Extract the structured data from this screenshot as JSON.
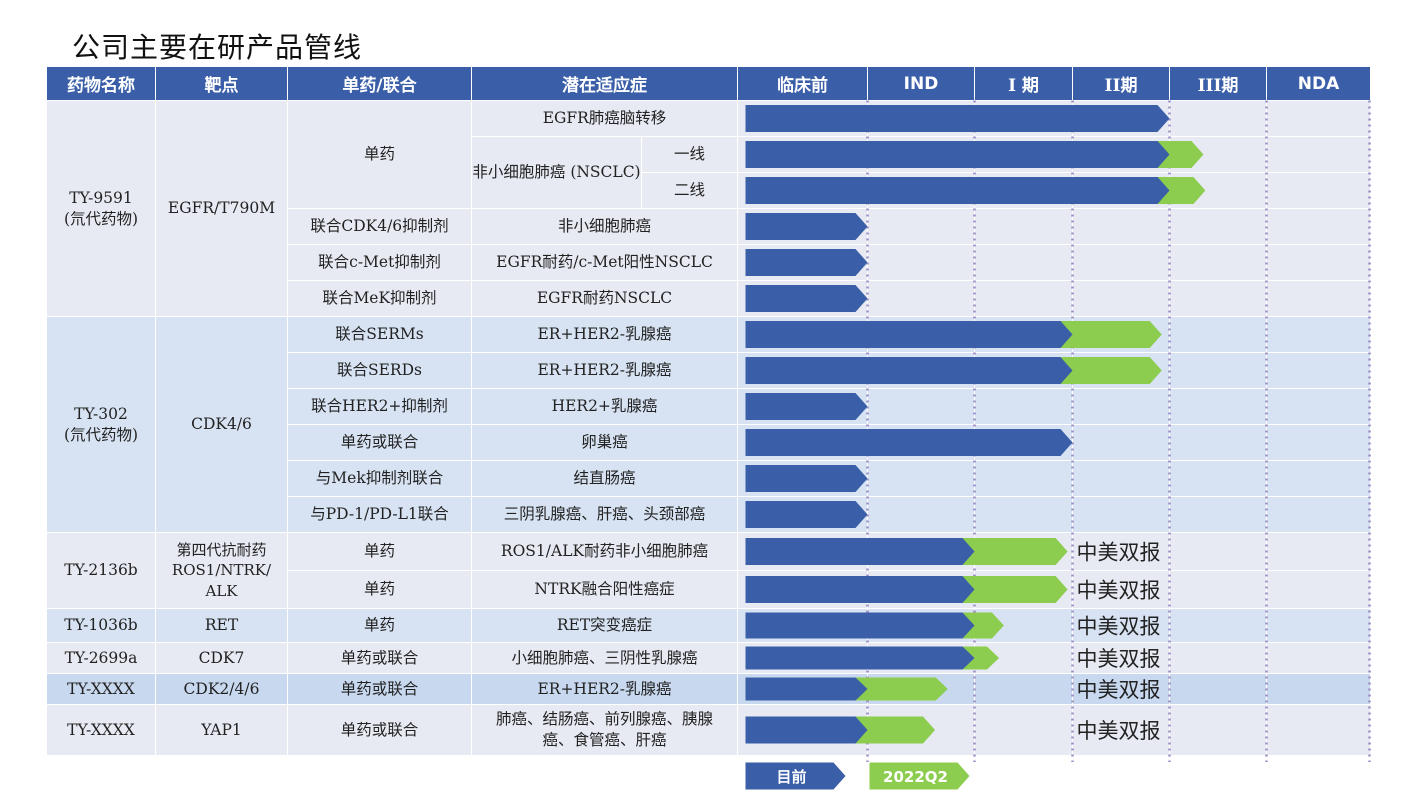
{
  "title": "公司主要在研产品管线",
  "headers": [
    "药物名称",
    "靶点",
    "单药/联合",
    "潜在适应症",
    "临床前",
    "IND",
    "I 期",
    "II期",
    "III期",
    "NDA"
  ],
  "rows": [
    {
      "indication": "EGFR肺癌脑转移",
      "blue_end": "II期",
      "green_end": "II期",
      "green_frac": 0.95,
      "note": ""
    },
    {
      "indication": "一线",
      "blue_end": "II期",
      "green_end": "III期",
      "green_frac": 0.35,
      "note": ""
    },
    {
      "indication": "二线",
      "blue_end": "II期",
      "green_end": "III期",
      "green_frac": 0.37,
      "note": ""
    },
    {
      "indication": "非小细胞肺癌",
      "blue_end": "临床前",
      "green_end": null,
      "note": ""
    },
    {
      "indication": "EGFR耐药/c-Met阳性NSCLC",
      "blue_end": "临床前",
      "green_end": null,
      "note": ""
    },
    {
      "indication": "EGFR耐药NSCLC",
      "blue_end": "临床前",
      "green_end": null,
      "note": ""
    },
    {
      "indication": "ER+HER2-乳腺癌",
      "blue_end": "I 期",
      "green_end": "II期",
      "green_frac": 0.92,
      "note": ""
    },
    {
      "indication": "ER+HER2-乳腺癌",
      "blue_end": "I 期",
      "green_end": "II期",
      "green_frac": 0.92,
      "note": ""
    },
    {
      "indication": "HER2+乳腺癌",
      "blue_end": "临床前",
      "green_end": null,
      "note": ""
    },
    {
      "indication": "卵巢癌",
      "blue_end": "I 期",
      "green_end": null,
      "note": ""
    },
    {
      "indication": "结直肠癌",
      "blue_end": "临床前",
      "green_end": null,
      "note": ""
    },
    {
      "indication": "三阴乳腺癌、肝癌、头颈部癌",
      "blue_end": "临床前",
      "green_end": null,
      "note": ""
    },
    {
      "indication": "ROS1/ALK耐药非小细胞肺癌",
      "blue_end": "IND",
      "green_end": "I 期",
      "green_frac": 0.95,
      "note": "中美双报"
    },
    {
      "indication": "NTRK融合阳性癌症",
      "blue_end": "IND",
      "green_end": "I 期",
      "green_frac": 0.95,
      "note": "中美双报"
    },
    {
      "indication": "RET突变癌症",
      "blue_end": "IND",
      "green_end": "I 期",
      "green_frac": 0.3,
      "note": "中美双报"
    },
    {
      "indication": "小细胞肺癌、三阴性乳腺癌",
      "blue_end": "IND",
      "green_end": "I 期",
      "green_frac": 0.25,
      "note": "中美双报"
    },
    {
      "indication": "ER+HER2-乳腺癌",
      "blue_end": "临床前",
      "green_end": "IND",
      "green_frac": 0.75,
      "note": "中美双报"
    },
    {
      "indication": "肺癌、结肠癌、前列腺癌、胰腺癌、食管癌、肝癌",
      "blue_end": "临床前",
      "green_end": "临床前",
      "green_frac": 0.75,
      "note": "中美双报"
    }
  ],
  "drugs": [
    {
      "name": "TY-9591",
      "sub": "(氘代药物)",
      "target": "EGFR/T790M"
    },
    {
      "name": "TY-302",
      "sub": "(氘代药物)",
      "target": "CDK4/6"
    },
    {
      "name": "TY-2136b",
      "target": "第四代抗耐药 ROS1/NTRK/ ALK"
    },
    {
      "name": "TY-1036b",
      "target": "RET"
    },
    {
      "name": "TY-2699a",
      "target": "CDK7"
    },
    {
      "name": "TY-XXXX",
      "target": "CDK2/4/6"
    },
    {
      "name": "TY-XXXX",
      "target": "YAP1"
    }
  ],
  "combos": [
    "单药",
    "联合CDK4/6抑制剂",
    "联合c-Met抑制剂",
    "联合MeK抑制剂",
    "联合SERMs",
    "联合SERDs",
    "联合HER2+抑制剂",
    "单药或联合",
    "与Mek抑制剂联合",
    "与PD-1/PD-L1联合",
    "单药",
    "单药",
    "单药",
    "单药或联合",
    "单药或联合",
    "单药或联合"
  ],
  "nsclc_label": "非小细胞肺癌 (NSCLC)",
  "legend": {
    "current": "目前",
    "future": "2022Q2"
  },
  "colors": {
    "header": "#3a5fa8",
    "blue_bar": "#3a5fa8",
    "green_bar": "#8ccc4e",
    "dotted": "#9a8dc4"
  }
}
